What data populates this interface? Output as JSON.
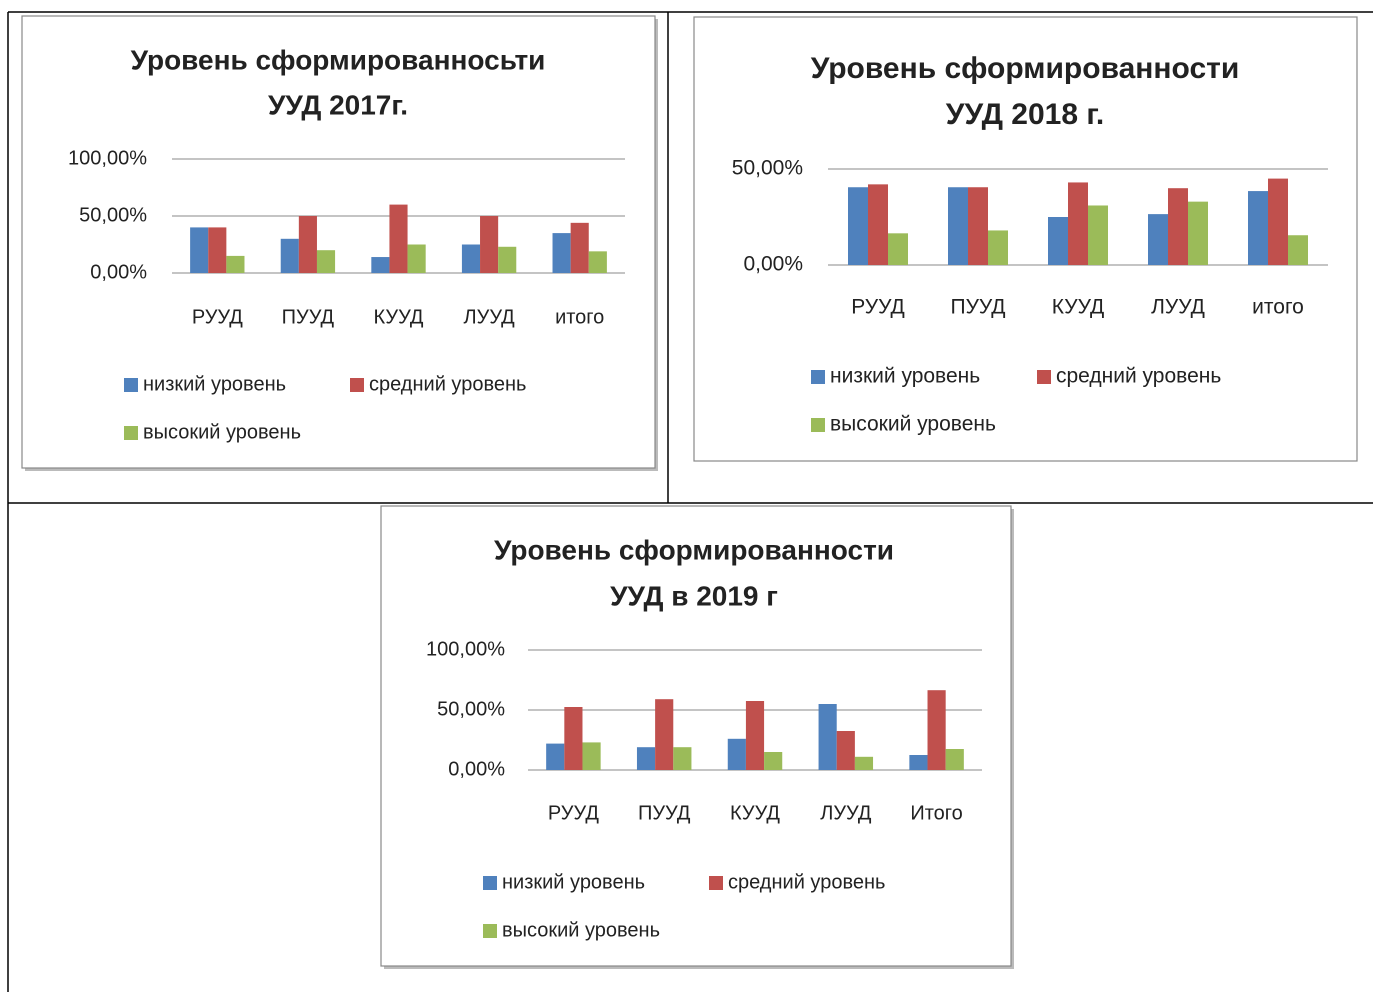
{
  "chart_data": [
    {
      "type": "bar",
      "title": [
        "Уровень сформированносьти",
        "УУД 2017г."
      ],
      "categories": [
        "РУУД",
        "ПУУД",
        "КУУД",
        "ЛУУД",
        "итого"
      ],
      "series": [
        {
          "name": "низкий уровень",
          "color": "#4f81bd",
          "values": [
            40,
            30,
            14,
            25,
            35
          ]
        },
        {
          "name": "средний уровень",
          "color": "#c0504d",
          "values": [
            40,
            50,
            60,
            50,
            44
          ]
        },
        {
          "name": "высокий уровень",
          "color": "#9bbb59",
          "values": [
            15,
            20,
            25,
            23,
            19
          ]
        }
      ],
      "ylim": [
        0,
        100
      ],
      "yticks": [
        {
          "value": 0,
          "label": "0,00%"
        },
        {
          "value": 50,
          "label": "50,00%"
        },
        {
          "value": 100,
          "label": "100,00%"
        }
      ],
      "grid": true
    },
    {
      "type": "bar",
      "title": [
        "Уровень сформированности",
        "УУД 2018 г."
      ],
      "categories": [
        "РУУД",
        "ПУУД",
        "КУУД",
        "ЛУУД",
        "итого"
      ],
      "series": [
        {
          "name": "низкий уровень",
          "color": "#4f81bd",
          "values": [
            40.5,
            40.5,
            25,
            26.5,
            38.5
          ]
        },
        {
          "name": "средний уровень",
          "color": "#c0504d",
          "values": [
            42,
            40.5,
            43,
            40,
            45
          ]
        },
        {
          "name": "высокий уровень",
          "color": "#9bbb59",
          "values": [
            16.5,
            18,
            31,
            33,
            15.5
          ]
        }
      ],
      "ylim": [
        0,
        50
      ],
      "yticks": [
        {
          "value": 0,
          "label": "0,00%"
        },
        {
          "value": 50,
          "label": "50,00%"
        }
      ],
      "grid": true
    },
    {
      "type": "bar",
      "title": [
        "Уровень сформированности",
        "УУД в 2019 г"
      ],
      "categories": [
        "РУУД",
        "ПУУД",
        "КУУД",
        "ЛУУД",
        "Итого"
      ],
      "series": [
        {
          "name": "низкий уровень",
          "color": "#4f81bd",
          "values": [
            22,
            19,
            26,
            55,
            12.5
          ]
        },
        {
          "name": "средний уровень",
          "color": "#c0504d",
          "values": [
            52.5,
            59,
            57.5,
            32.5,
            66.5
          ]
        },
        {
          "name": "высокий уровень",
          "color": "#9bbb59",
          "values": [
            23,
            19,
            15,
            11,
            17.5
          ]
        }
      ],
      "ylim": [
        0,
        100
      ],
      "yticks": [
        {
          "value": 0,
          "label": "0,00%"
        },
        {
          "value": 50,
          "label": "50,00%"
        },
        {
          "value": 100,
          "label": "100,00%"
        }
      ],
      "grid": true
    }
  ]
}
